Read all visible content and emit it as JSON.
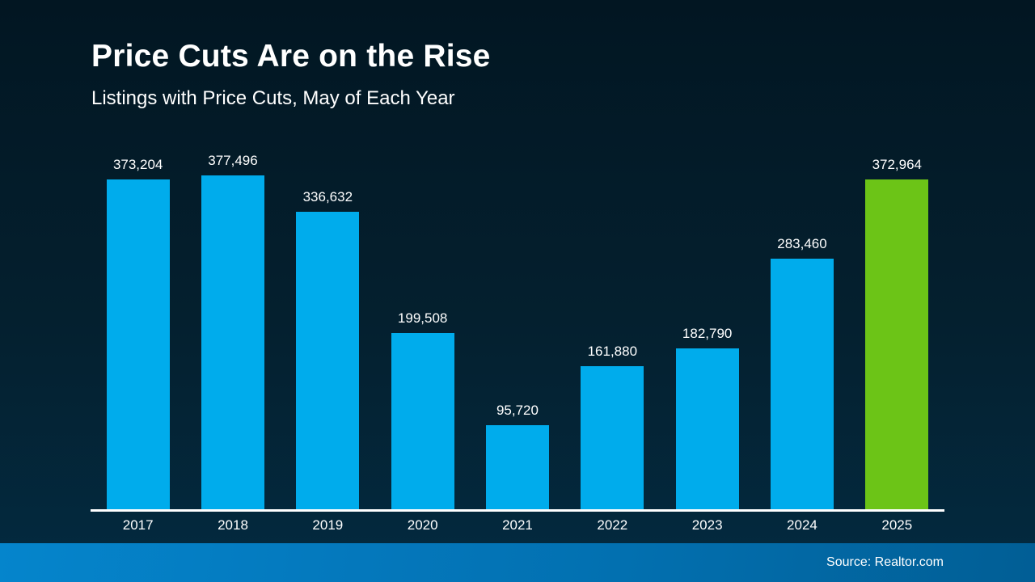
{
  "slide": {
    "title": "Price Cuts Are on the Rise",
    "subtitle": "Listings with Price Cuts, May of Each Year",
    "source": "Source: Realtor.com"
  },
  "colors": {
    "background_top": "#021622",
    "background_bottom": "#03293e",
    "bar_blue": "#00acec",
    "bar_highlight_green": "#6cc417",
    "axis_line": "#ffffff",
    "text": "#ffffff",
    "footer_gradient_left": "#0585cc",
    "footer_gradient_right": "#015e95"
  },
  "chart_data": {
    "type": "bar",
    "title": "Price Cuts Are on the Rise",
    "subtitle": "Listings with Price Cuts, May of Each Year",
    "categories": [
      "2017",
      "2018",
      "2019",
      "2020",
      "2021",
      "2022",
      "2023",
      "2024",
      "2025"
    ],
    "values": [
      373204,
      377496,
      336632,
      199508,
      95720,
      161880,
      182790,
      283460,
      372964
    ],
    "value_labels": [
      "373,204",
      "377,496",
      "336,632",
      "199,508",
      "95,720",
      "161,880",
      "182,790",
      "283,460",
      "372,964"
    ],
    "bar_colors": [
      "#00acec",
      "#00acec",
      "#00acec",
      "#00acec",
      "#00acec",
      "#00acec",
      "#00acec",
      "#00acec",
      "#6cc417"
    ],
    "highlight_index": 8,
    "xlabel": "",
    "ylabel": "",
    "ylim": [
      0,
      400000
    ],
    "grid": false,
    "legend": "none",
    "data_labels": "above bars",
    "source": "Source: Realtor.com"
  }
}
